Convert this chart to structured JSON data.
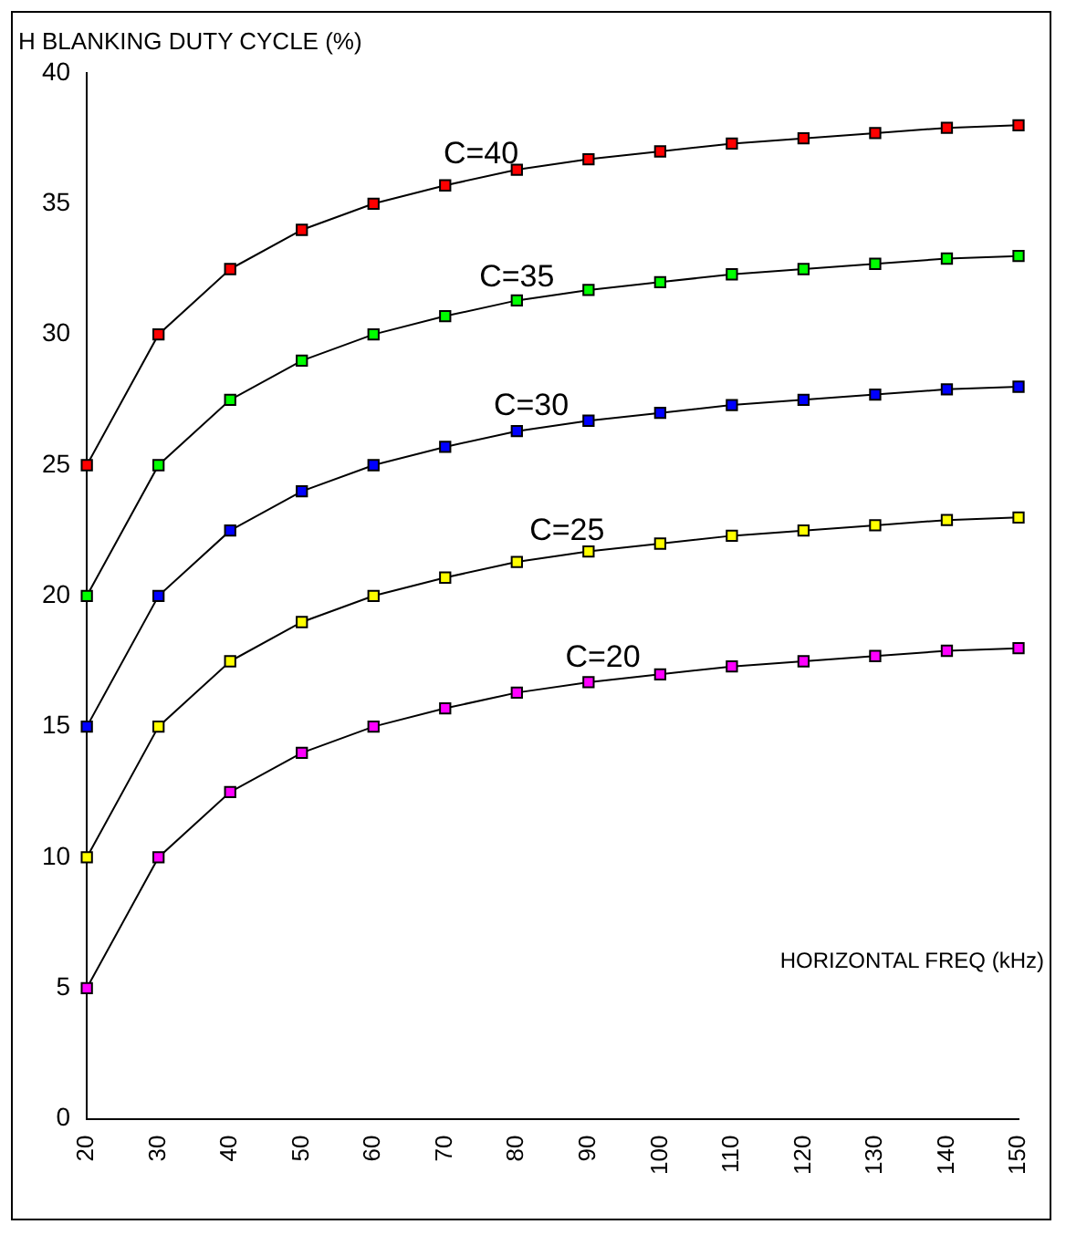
{
  "chart_data": {
    "type": "line",
    "ylabel": "H BLANKING DUTY CYCLE (%)",
    "xlabel": "HORIZONTAL FREQ (kHz)",
    "categories": [
      "20",
      "30",
      "40",
      "50",
      "60",
      "70",
      "80",
      "90",
      "100",
      "110",
      "120",
      "130",
      "140",
      "150"
    ],
    "series": [
      {
        "name": "C=40",
        "color": "#ff0000",
        "values": [
          25,
          30,
          32.5,
          34,
          35,
          35.7,
          36.3,
          36.7,
          37,
          37.3,
          37.5,
          37.7,
          37.9,
          38
        ]
      },
      {
        "name": "C=35",
        "color": "#00ff00",
        "values": [
          20,
          25,
          27.5,
          29,
          30,
          30.7,
          31.3,
          31.7,
          32,
          32.3,
          32.5,
          32.7,
          32.9,
          33
        ]
      },
      {
        "name": "C=30",
        "color": "#0000ff",
        "values": [
          15,
          20,
          22.5,
          24,
          25,
          25.7,
          26.3,
          26.7,
          27,
          27.3,
          27.5,
          27.7,
          27.9,
          28
        ]
      },
      {
        "name": "C=25",
        "color": "#ffff00",
        "values": [
          10,
          15,
          17.5,
          19,
          20,
          20.7,
          21.3,
          21.7,
          22,
          22.3,
          22.5,
          22.7,
          22.9,
          23
        ]
      },
      {
        "name": "C=20",
        "color": "#ff00ff",
        "values": [
          5,
          10,
          12.5,
          14,
          15,
          15.7,
          16.3,
          16.7,
          17,
          17.3,
          17.5,
          17.7,
          17.9,
          18
        ]
      }
    ],
    "ylim": [
      0,
      40
    ],
    "yticks": [
      0,
      5,
      10,
      15,
      20,
      25,
      30,
      35,
      40
    ],
    "grid": false,
    "legend": false,
    "marker": "square",
    "line_style": "solid"
  }
}
